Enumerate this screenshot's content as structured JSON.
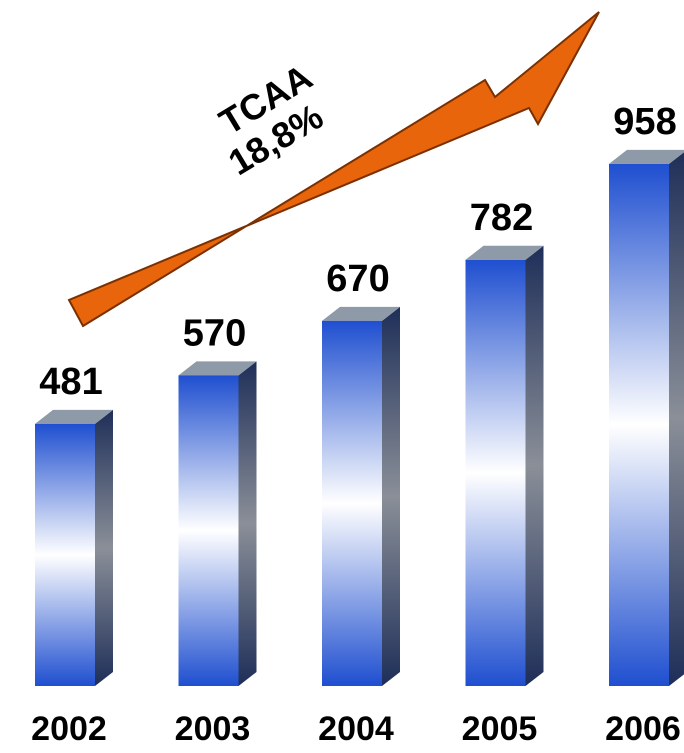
{
  "chart_data": {
    "type": "bar",
    "categories": [
      "2002",
      "2003",
      "2004",
      "2005",
      "2006"
    ],
    "values": [
      481,
      570,
      670,
      782,
      958
    ],
    "title": "",
    "xlabel": "",
    "ylabel": "",
    "grid": false,
    "legend": "none",
    "data_labels": true,
    "annotation": {
      "lines": [
        "TCAA",
        "18,8%"
      ]
    }
  },
  "colors": {
    "bar_top": "#1f4fd0",
    "bar_mid": "#ffffff",
    "bar_side": "#1e2e58",
    "bar_cap": "#8f9aa8",
    "arrow": "#e8650b",
    "arrow_outline": "#7a3000"
  }
}
